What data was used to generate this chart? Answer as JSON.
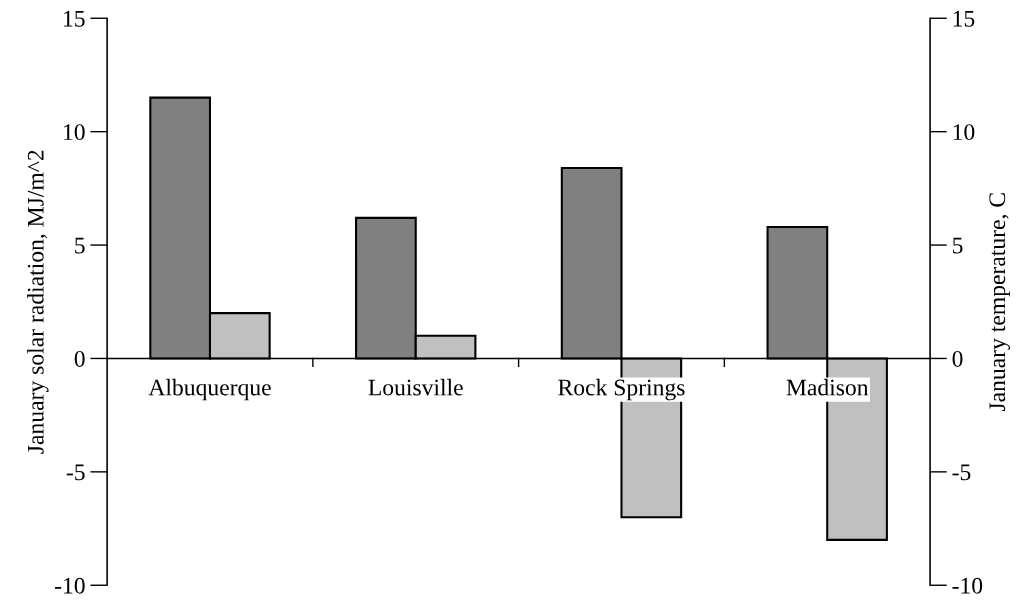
{
  "chart_data": {
    "type": "bar",
    "categories": [
      "Albuquerque",
      "Louisville",
      "Rock Springs",
      "Madison"
    ],
    "series": [
      {
        "color": "#808080",
        "values": [
          11.5,
          6.2,
          8.4,
          5.8
        ]
      },
      {
        "color": "#c0c0c0",
        "values": [
          2.0,
          1.0,
          -7.0,
          -8.0
        ]
      }
    ],
    "ylabel": "January solar radiation, MJ/m^2",
    "y2label": "January temperature, C",
    "ylim": [
      -10,
      15
    ],
    "yticks": [
      -10,
      -5,
      0,
      5,
      10,
      15
    ],
    "y2lim": [
      -10,
      15
    ],
    "y2ticks": [
      -10,
      -5,
      0,
      5,
      10,
      15
    ],
    "grid": false
  }
}
